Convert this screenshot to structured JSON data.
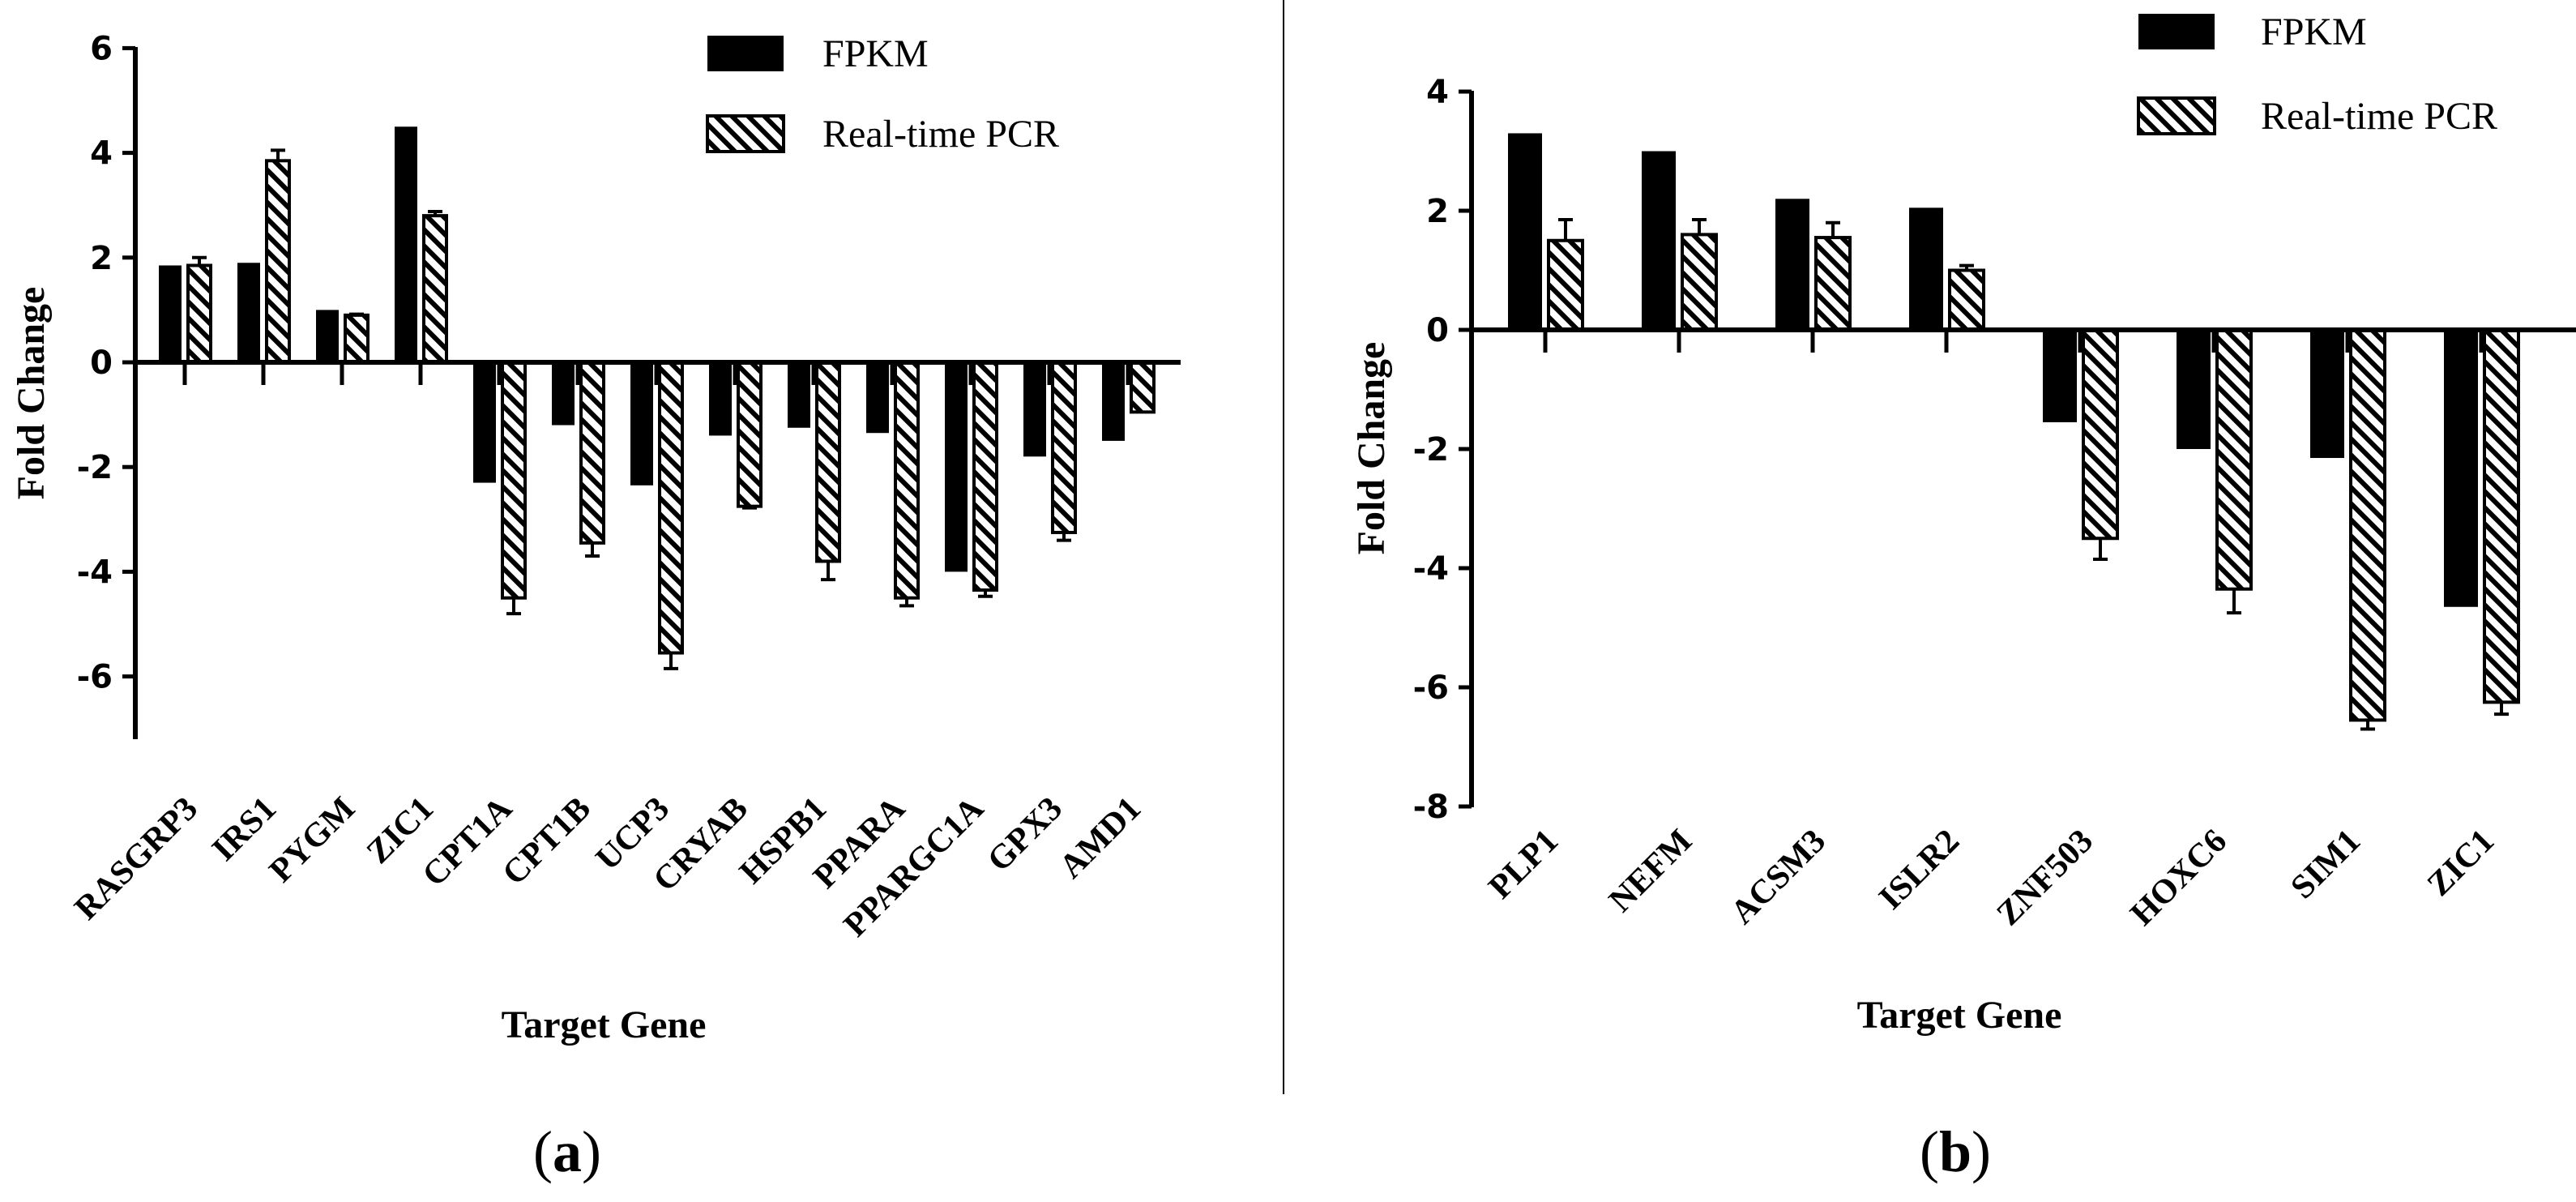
{
  "chart_data": [
    {
      "type": "bar",
      "panel_label": "a",
      "xlabel": "Target Gene",
      "ylabel": "Fold Change",
      "ylim": [
        -7,
        6
      ],
      "yticks": [
        6,
        4,
        2,
        0,
        -2,
        -4,
        -6
      ],
      "categories": [
        "RASGRP3",
        "IRS1",
        "PYGM",
        "ZIC1",
        "CPT1A",
        "CPT1B",
        "UCP3",
        "CRYAB",
        "HSPB1",
        "PPARA",
        "PPARGC1A",
        "GPX3",
        "AMD1"
      ],
      "series": [
        {
          "name": "FPKM",
          "pattern": "solid",
          "values": [
            1.85,
            1.9,
            1.0,
            4.5,
            -2.3,
            -1.2,
            -2.35,
            -1.4,
            -1.25,
            -1.35,
            -4.0,
            -1.8,
            -1.5
          ]
        },
        {
          "name": "Real-time PCR",
          "pattern": "hatched",
          "values": [
            1.85,
            3.85,
            0.9,
            2.8,
            -4.5,
            -3.45,
            -5.55,
            -2.75,
            -3.8,
            -4.5,
            -4.35,
            -3.25,
            -0.95
          ]
        }
      ],
      "errors": [
        0.15,
        0.2,
        0.02,
        0.08,
        0.3,
        0.25,
        0.3,
        0.03,
        0.35,
        0.15,
        0.12,
        0.15,
        0.0
      ],
      "legend": [
        "FPKM",
        "Real-time PCR"
      ]
    },
    {
      "type": "bar",
      "panel_label": "b",
      "xlabel": "Target Gene",
      "ylabel": "Fold Change",
      "ylim": [
        -8,
        4
      ],
      "yticks": [
        4,
        2,
        0,
        -2,
        -4,
        -6,
        -8
      ],
      "categories": [
        "PLP1",
        "NEFM",
        "ACSM3",
        "ISLR2",
        "ZNF503",
        "HOXC6",
        "SIM1",
        "ZIC1"
      ],
      "series": [
        {
          "name": "FPKM",
          "pattern": "solid",
          "values": [
            3.3,
            3.0,
            2.2,
            2.05,
            -1.55,
            -2.0,
            -2.15,
            -4.65
          ]
        },
        {
          "name": "Real-time PCR",
          "pattern": "hatched",
          "values": [
            1.5,
            1.6,
            1.55,
            1.0,
            -3.5,
            -4.35,
            -6.55,
            -6.25
          ]
        }
      ],
      "errors": [
        0.35,
        0.25,
        0.25,
        0.08,
        0.35,
        0.4,
        0.15,
        0.2
      ],
      "legend": [
        "FPKM",
        "Real-time PCR"
      ]
    }
  ]
}
